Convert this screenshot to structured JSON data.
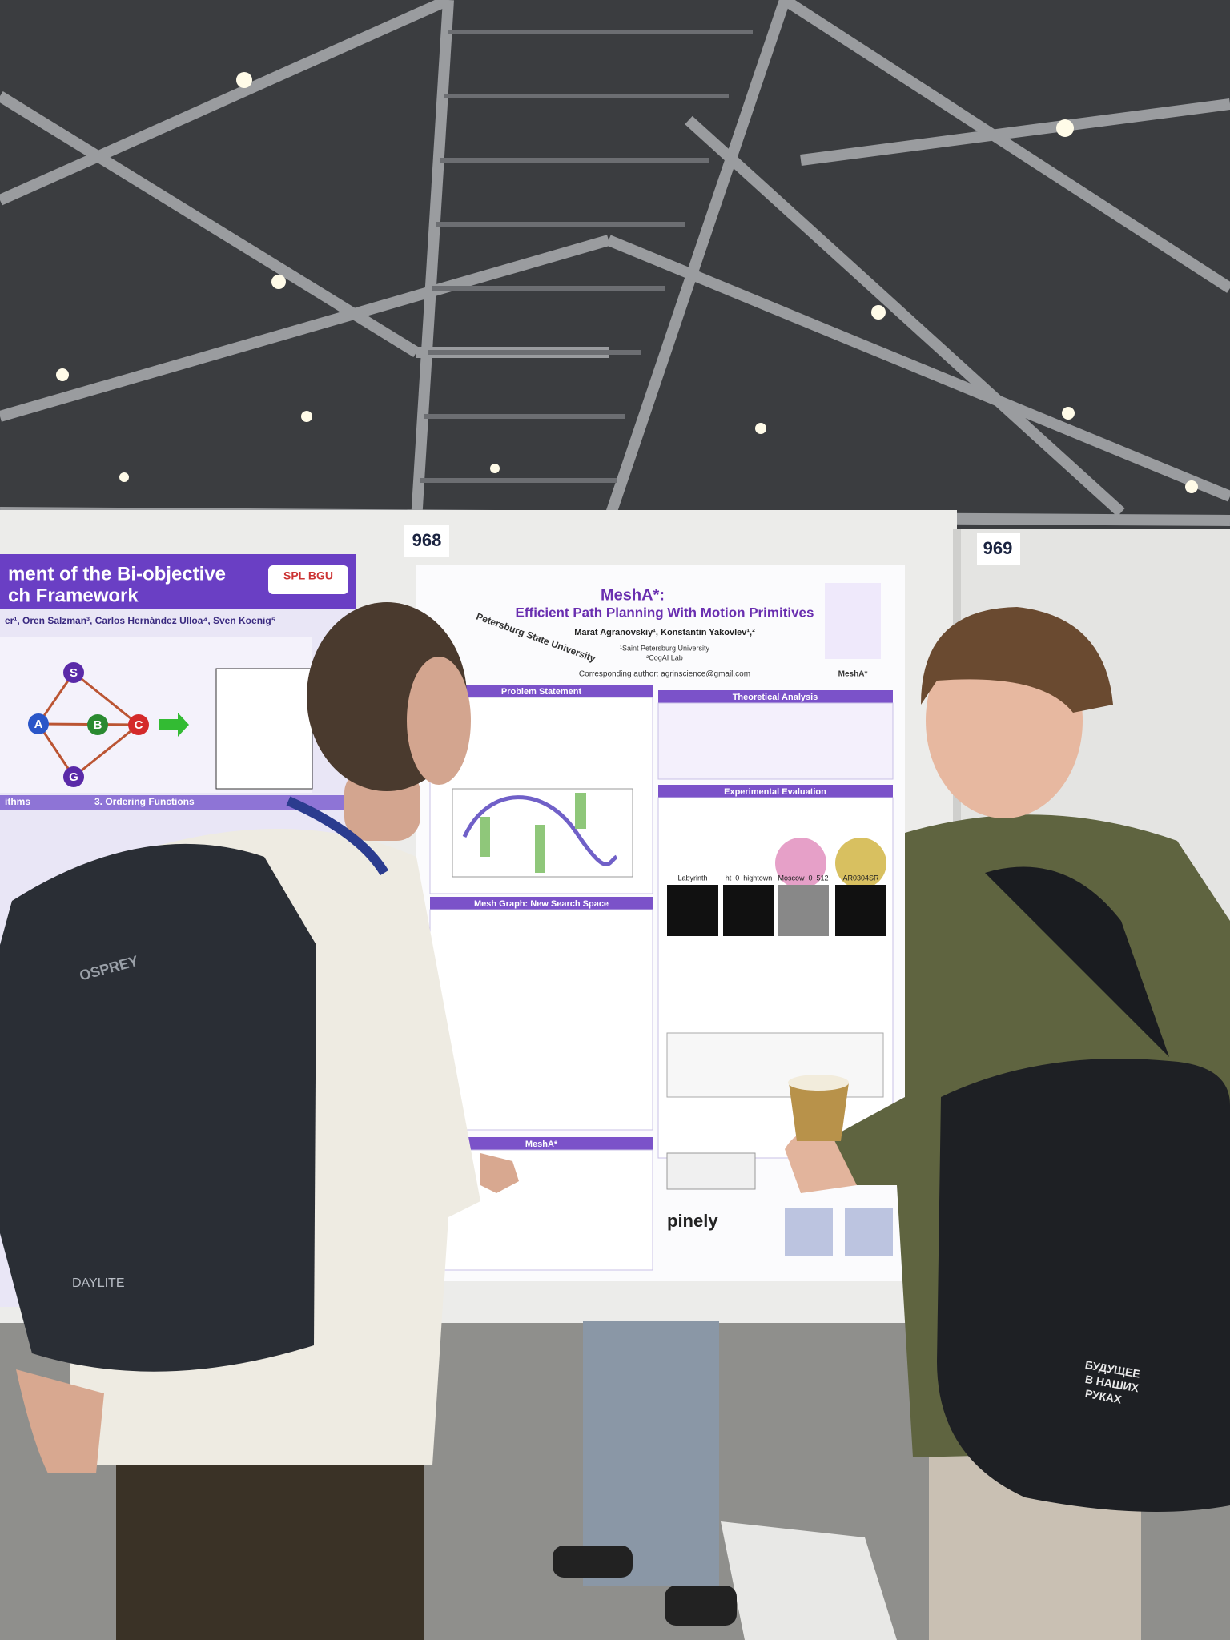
{
  "signs": [
    "968",
    "969"
  ],
  "main_poster": {
    "title": "MeshA*:",
    "subtitle": "Efficient Path Planning With Motion Primitives",
    "authors": "Marat Agranovskiy¹, Konstantin Yakovlev¹,²",
    "affiliations": [
      "¹Saint Petersburg University",
      "²CogAI Lab"
    ],
    "contact": "Corresponding author: agrinscience@gmail.com",
    "university": "Petersburg State University",
    "logo": "MeshA*",
    "sections": {
      "problem": "Problem Statement",
      "theory": "Theoretical Analysis",
      "experiments": "Experimental Evaluation",
      "mesh": "Mesh Graph: New Search Space",
      "mesha": "MeshA*"
    },
    "maps": [
      "Labyrinth",
      "ht_0_hightown",
      "Moscow_0_512",
      "AR0304SR"
    ],
    "sponsor": "pinely"
  },
  "left_poster": {
    "title_lines": [
      "ment of the Bi-objective",
      "ch Framework"
    ],
    "authors": "er¹, Oren Salzman³, Carlos Hernández Ulloa⁴, Sven Koenig⁵",
    "badge": "SPL BGU",
    "sections": [
      "ithms",
      "3. Ordering Functions"
    ],
    "nodes": [
      "S",
      "A",
      "B",
      "C",
      "G"
    ]
  },
  "backpack": {
    "brand": "OSPREY",
    "model": "DAYLITE"
  },
  "bag": [
    "БУДУЩЕЕ",
    "В НАШИХ",
    "РУКАХ"
  ]
}
